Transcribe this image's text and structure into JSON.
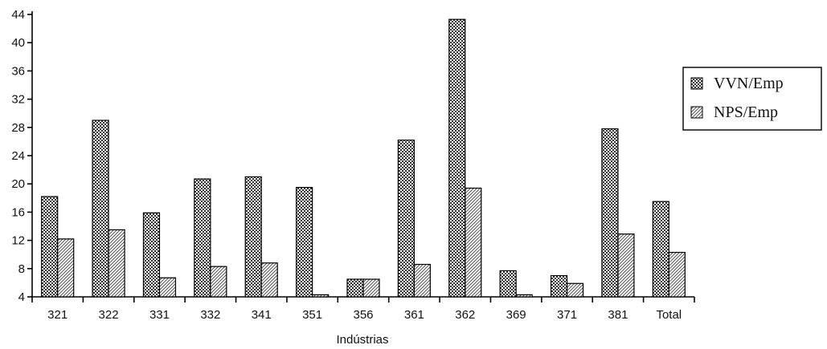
{
  "chart_data": {
    "type": "bar",
    "categories": [
      "321",
      "322",
      "331",
      "332",
      "341",
      "351",
      "356",
      "361",
      "362",
      "369",
      "371",
      "381",
      "Total"
    ],
    "series": [
      {
        "name": "VVN/Emp",
        "values": [
          18.2,
          29.0,
          15.9,
          20.7,
          21.0,
          19.5,
          6.5,
          26.2,
          43.3,
          7.7,
          7.0,
          27.8,
          17.5
        ]
      },
      {
        "name": "NPS/Emp",
        "values": [
          12.2,
          13.5,
          6.7,
          8.3,
          8.8,
          4.3,
          6.5,
          8.6,
          19.4,
          4.3,
          5.9,
          12.9,
          10.3
        ]
      }
    ],
    "yticks": [
      "4",
      "8",
      "12",
      "16",
      "20",
      "24",
      "28",
      "32",
      "36",
      "40",
      "44"
    ],
    "ylim": [
      4,
      44
    ],
    "xlabel": "Indústrias",
    "ylabel": "",
    "title": "",
    "legend_position": "right",
    "grid": false,
    "colors": {
      "series_1": "#555555",
      "series_2": "#bdbdbd"
    }
  }
}
